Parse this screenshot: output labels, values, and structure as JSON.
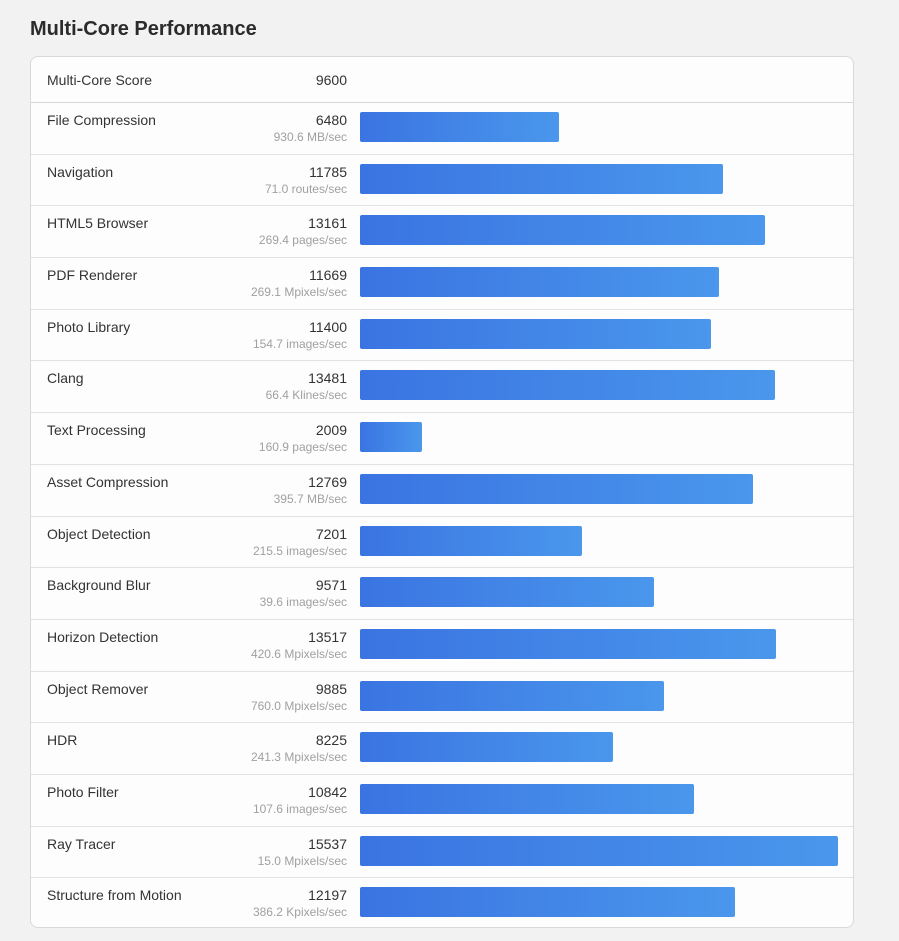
{
  "title": "Multi-Core Performance",
  "summary": {
    "label": "Multi-Core Score",
    "value": "9600"
  },
  "chart_data": {
    "type": "bar",
    "orientation": "horizontal",
    "title": "Multi-Core Performance",
    "xlim": [
      0,
      15537
    ],
    "categories": [
      "File Compression",
      "Navigation",
      "HTML5 Browser",
      "PDF Renderer",
      "Photo Library",
      "Clang",
      "Text Processing",
      "Asset Compression",
      "Object Detection",
      "Background Blur",
      "Horizon Detection",
      "Object Remover",
      "HDR",
      "Photo Filter",
      "Ray Tracer",
      "Structure from Motion"
    ],
    "values": [
      6480,
      11785,
      13161,
      11669,
      11400,
      13481,
      2009,
      12769,
      7201,
      9571,
      13517,
      9885,
      8225,
      10842,
      15537,
      12197
    ],
    "rates": [
      "930.6 MB/sec",
      "71.0 routes/sec",
      "269.4 pages/sec",
      "269.1 Mpixels/sec",
      "154.7 images/sec",
      "66.4 Klines/sec",
      "160.9 pages/sec",
      "395.7 MB/sec",
      "215.5 images/sec",
      "39.6 images/sec",
      "420.6 Mpixels/sec",
      "760.0 Mpixels/sec",
      "241.3 Mpixels/sec",
      "107.6 images/sec",
      "15.0 Mpixels/sec",
      "386.2 Kpixels/sec"
    ],
    "bar_color": "#3a74e2",
    "bar_color_end": "#4a97ec"
  }
}
